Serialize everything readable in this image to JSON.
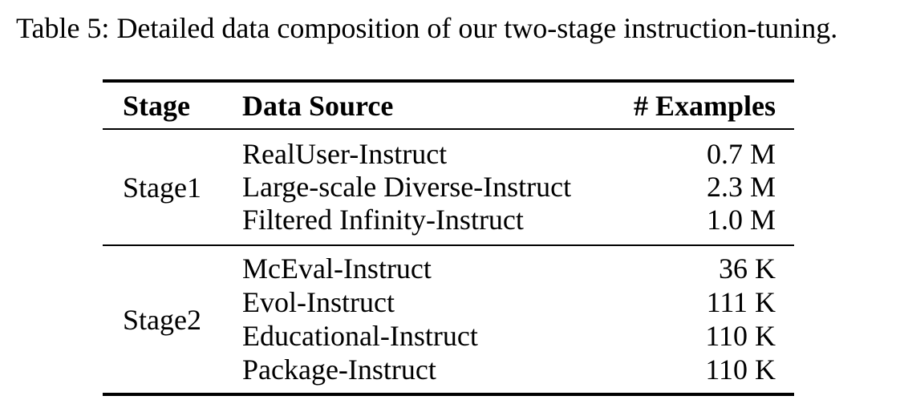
{
  "caption": "Table 5: Detailed data composition of our two-stage instruction-tuning.",
  "header": {
    "stage": "Stage",
    "source": "Data Source",
    "examples": "# Examples"
  },
  "groups": [
    {
      "stage": "Stage1",
      "rows": [
        {
          "source": "RealUser-Instruct",
          "examples": "0.7 M"
        },
        {
          "source": "Large-scale Diverse-Instruct",
          "examples": "2.3 M"
        },
        {
          "source": "Filtered Infinity-Instruct",
          "examples": "1.0 M"
        }
      ]
    },
    {
      "stage": "Stage2",
      "rows": [
        {
          "source": "McEval-Instruct",
          "examples": "36 K"
        },
        {
          "source": "Evol-Instruct",
          "examples": "111 K"
        },
        {
          "source": "Educational-Instruct",
          "examples": "110 K"
        },
        {
          "source": "Package-Instruct",
          "examples": "110 K"
        }
      ]
    }
  ]
}
